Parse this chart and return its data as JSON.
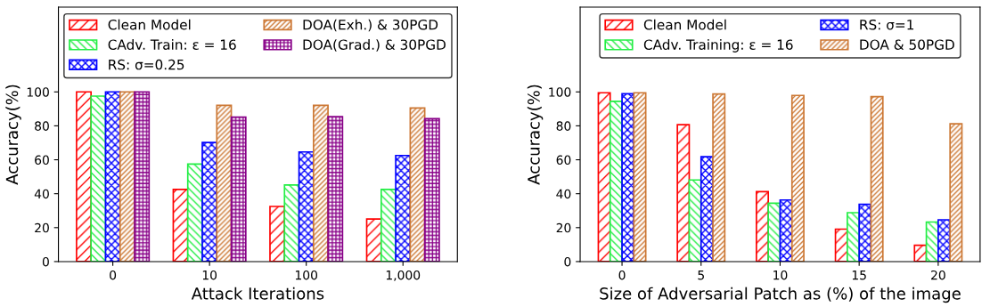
{
  "chart_data": [
    {
      "type": "bar",
      "xlabel": "Attack Iterations",
      "ylabel": "Accuracy(%)",
      "categories": [
        "0",
        "10",
        "100",
        "1,000"
      ],
      "ylim": [
        0,
        150
      ],
      "yticks": [
        0,
        20,
        40,
        60,
        80,
        100
      ],
      "legend": "top",
      "grid": false,
      "series": [
        {
          "name": "Clean Model",
          "color": "#ff0000",
          "values": [
            100,
            42.5,
            32.5,
            25.1
          ]
        },
        {
          "name": "CAdv. Train: ε = 16",
          "color": "#22ee44",
          "values": [
            97.5,
            57.5,
            45.1,
            42.5
          ]
        },
        {
          "name": "RS: σ=0.25",
          "color": "#0000ff",
          "values": [
            100,
            70.2,
            64.6,
            62.5
          ]
        },
        {
          "name": "DOA(Exh.) & 30PGD",
          "color": "#cc7733",
          "values": [
            100,
            92.1,
            92.1,
            90.5
          ]
        },
        {
          "name": "DOA(Grad.) & 30PGD",
          "color": "#880088",
          "values": [
            100,
            85.1,
            85.4,
            84.2
          ]
        }
      ]
    },
    {
      "type": "bar",
      "xlabel": "Size of Adversarial Patch as (%) of the image",
      "ylabel": "Accuracy(%)",
      "categories": [
        "0",
        "5",
        "10",
        "15",
        "20"
      ],
      "ylim": [
        0,
        150
      ],
      "yticks": [
        0,
        20,
        40,
        60,
        80,
        100
      ],
      "legend": "top",
      "grid": false,
      "series": [
        {
          "name": "Clean Model",
          "color": "#ff0000",
          "values": [
            99.5,
            80.7,
            41.2,
            19.1,
            9.6
          ]
        },
        {
          "name": "CAdv. Training: ε = 16",
          "color": "#22ee44",
          "values": [
            94.4,
            48.1,
            34.4,
            28.8,
            23.3
          ]
        },
        {
          "name": "RS: σ=1",
          "color": "#0000ff",
          "values": [
            98.9,
            61.8,
            36.3,
            33.7,
            24.6
          ]
        },
        {
          "name": "DOA & 50PGD",
          "color": "#cc7733",
          "values": [
            99.5,
            98.8,
            97.9,
            97.2,
            81.2
          ]
        }
      ]
    }
  ]
}
